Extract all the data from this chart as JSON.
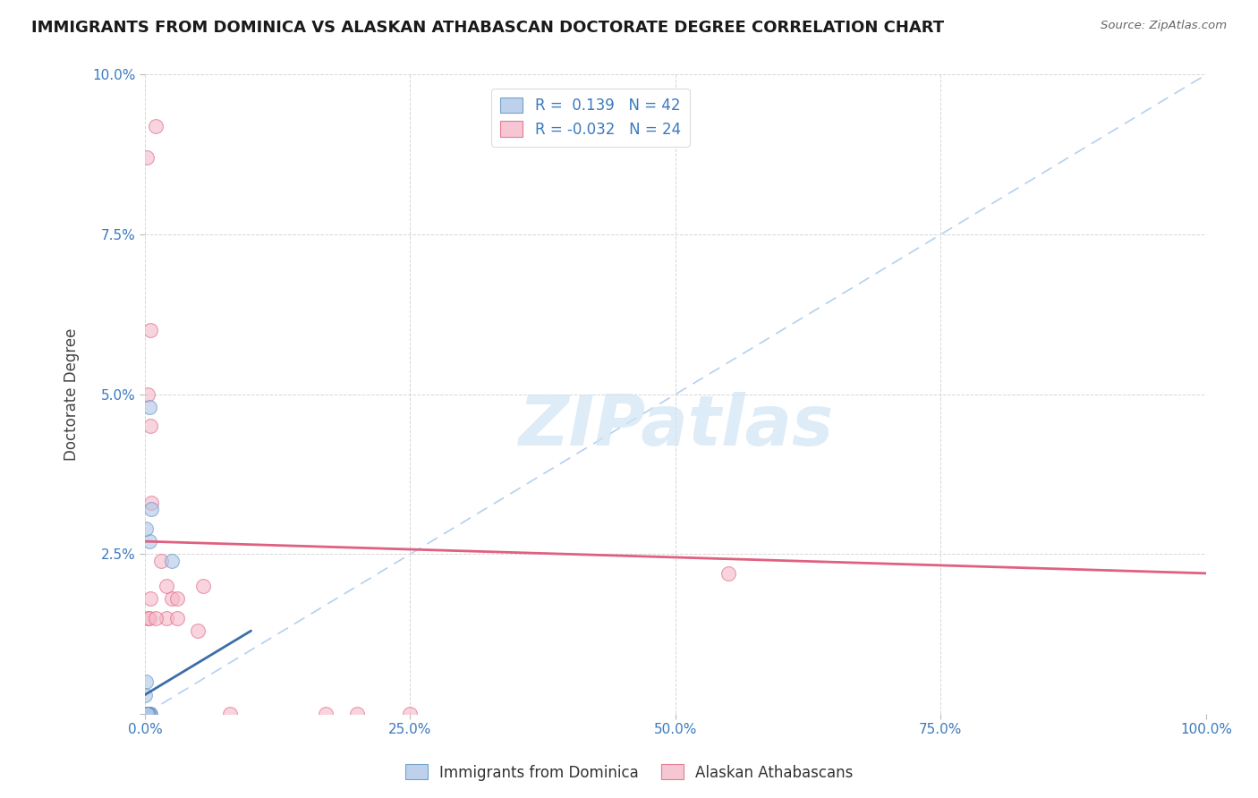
{
  "title": "IMMIGRANTS FROM DOMINICA VS ALASKAN ATHABASCAN DOCTORATE DEGREE CORRELATION CHART",
  "source": "Source: ZipAtlas.com",
  "ylabel": "Doctorate Degree",
  "xlim": [
    0,
    100
  ],
  "ylim": [
    0,
    10
  ],
  "xticks": [
    0,
    25,
    50,
    75,
    100
  ],
  "xticklabels": [
    "0.0%",
    "25.0%",
    "50.0%",
    "75.0%",
    "100.0%"
  ],
  "yticks": [
    0,
    2.5,
    5.0,
    7.5,
    10.0
  ],
  "yticklabels": [
    "",
    "2.5%",
    "5.0%",
    "7.5%",
    "10.0%"
  ],
  "grid_color": "#cccccc",
  "background_color": "#ffffff",
  "blue_color": "#aec6e8",
  "pink_color": "#f4b8c8",
  "blue_edge_color": "#5a8fc0",
  "pink_edge_color": "#e06080",
  "blue_line_color": "#3a6ea8",
  "pink_line_color": "#e06080",
  "dash_color": "#aaccee",
  "watermark_color": "#d0e4f4",
  "watermark": "ZIPatlas",
  "blue_scatter_x": [
    0.4,
    0.3,
    0.2,
    0.1,
    0.5,
    0.6,
    0.2,
    0.1,
    0.0,
    0.1,
    0.2,
    0.3,
    0.0,
    0.1,
    0.2,
    0.4,
    0.3,
    0.2,
    0.1,
    0.0,
    0.0,
    0.1,
    0.2,
    0.3,
    0.4,
    0.1,
    0.2,
    0.1,
    0.0,
    0.3,
    0.2,
    0.1,
    0.0,
    0.1,
    0.2,
    0.3,
    0.0,
    0.1,
    2.5,
    0.1,
    0.2,
    0.3
  ],
  "blue_scatter_y": [
    4.8,
    0.0,
    0.0,
    0.5,
    0.0,
    3.2,
    0.0,
    0.0,
    0.3,
    0.0,
    0.0,
    0.0,
    0.0,
    0.0,
    0.0,
    2.7,
    0.0,
    0.0,
    0.0,
    0.0,
    0.0,
    0.0,
    0.0,
    0.0,
    0.0,
    0.0,
    0.0,
    0.0,
    0.0,
    0.0,
    0.0,
    0.0,
    0.0,
    0.0,
    0.0,
    0.0,
    0.0,
    2.9,
    2.4,
    0.0,
    0.0,
    0.0
  ],
  "pink_scatter_x": [
    1.5,
    5.5,
    0.3,
    0.5,
    2.5,
    8.0,
    0.2,
    17.0,
    0.3,
    0.4,
    0.6,
    0.5,
    55.0,
    5.0,
    20.0,
    2.0,
    3.0,
    25.0,
    0.4,
    1.0,
    2.0,
    3.0,
    1.0,
    0.5
  ],
  "pink_scatter_y": [
    2.4,
    2.0,
    5.0,
    4.5,
    1.8,
    0.0,
    8.7,
    0.0,
    1.5,
    0.0,
    3.3,
    6.0,
    2.2,
    1.3,
    0.0,
    1.5,
    1.8,
    0.0,
    1.5,
    1.5,
    2.0,
    1.5,
    9.2,
    1.8
  ],
  "blue_trend_x0": 0,
  "blue_trend_y0": 0.3,
  "blue_trend_x1": 10,
  "blue_trend_y1": 1.3,
  "pink_trend_x0": 0,
  "pink_trend_y0": 2.7,
  "pink_trend_x1": 100,
  "pink_trend_y1": 2.2,
  "diag_x0": 0,
  "diag_y0": 0,
  "diag_x1": 100,
  "diag_y1": 10
}
